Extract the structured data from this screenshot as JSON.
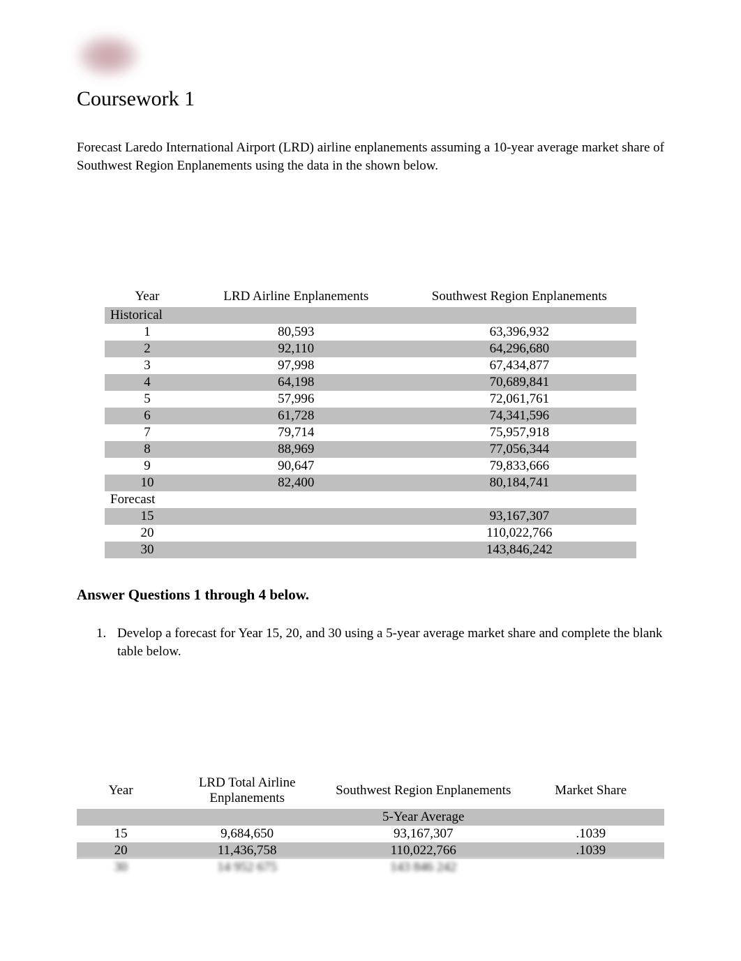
{
  "colors": {
    "row_grey": "#bfbfbf",
    "row_white": "#ffffff",
    "text": "#000000",
    "logo_tint": "#8b3c46"
  },
  "title": "Coursework 1",
  "intro": "Forecast Laredo International Airport (LRD) airline enplanements assuming a 10-year average market share of Southwest Region Enplanements using the data in the shown below.",
  "table1": {
    "columns": [
      "Year",
      "LRD Airline Enplanements",
      "Southwest Region Enplanements"
    ],
    "section_historical": "Historical",
    "section_forecast": "Forecast",
    "historical_rows": [
      {
        "year": "1",
        "lrd": "80,593",
        "sw": "63,396,932"
      },
      {
        "year": "2",
        "lrd": "92,110",
        "sw": "64,296,680"
      },
      {
        "year": "3",
        "lrd": "97,998",
        "sw": "67,434,877"
      },
      {
        "year": "4",
        "lrd": "64,198",
        "sw": "70,689,841"
      },
      {
        "year": "5",
        "lrd": "57,996",
        "sw": "72,061,761"
      },
      {
        "year": "6",
        "lrd": "61,728",
        "sw": "74,341,596"
      },
      {
        "year": "7",
        "lrd": "79,714",
        "sw": "75,957,918"
      },
      {
        "year": "8",
        "lrd": "88,969",
        "sw": "77,056,344"
      },
      {
        "year": "9",
        "lrd": "90,647",
        "sw": "79,833,666"
      },
      {
        "year": "10",
        "lrd": "82,400",
        "sw": "80,184,741"
      }
    ],
    "forecast_rows": [
      {
        "year": "15",
        "lrd": "",
        "sw": "93,167,307"
      },
      {
        "year": "20",
        "lrd": "",
        "sw": "110,022,766"
      },
      {
        "year": "30",
        "lrd": "",
        "sw": "143,846,242"
      }
    ]
  },
  "questions_heading": "Answer Questions 1 through 4 below.",
  "question1": {
    "num": "1.",
    "text": "Develop a forecast for Year 15, 20, and 30 using a 5-year average market share and complete the blank table below."
  },
  "table2": {
    "columns": [
      "Year",
      "LRD Total Airline Enplanements",
      "Southwest Region Enplanements",
      "Market Share"
    ],
    "section_label": "5-Year Average",
    "rows": [
      {
        "year": "15",
        "lrd": "9,684,650",
        "sw": "93,167,307",
        "ms": ".1039"
      },
      {
        "year": "20",
        "lrd": "11,436,758",
        "sw": "110,022,766",
        "ms": ".1039"
      },
      {
        "year": "30",
        "lrd": "14 952 675",
        "sw": "143 846 242",
        "ms": ""
      }
    ]
  }
}
